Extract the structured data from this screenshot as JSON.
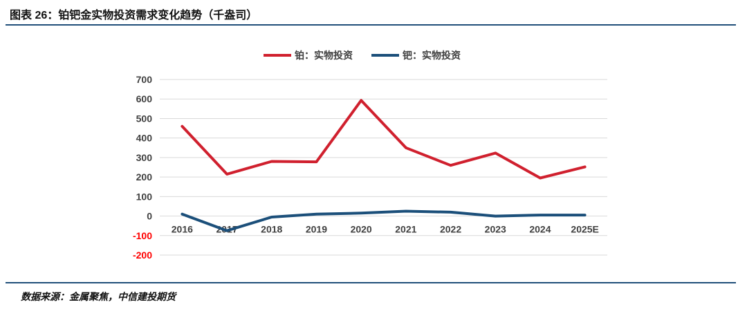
{
  "header": {
    "title": "图表 26：铂钯金实物投资需求变化趋势（千盎司）"
  },
  "footer": {
    "source": "数据来源：金属聚焦，中信建投期货"
  },
  "colors": {
    "platinum": "#d0202e",
    "palladium": "#1b4f7a",
    "axis_text": "#404040",
    "negative_text": "#ff0000",
    "grid": "#d9d9d9",
    "rule": "#1f4e79"
  },
  "chart_data": {
    "type": "line",
    "title": "铂钯金实物投资需求变化趋势（千盎司）",
    "categories": [
      "2016",
      "2017",
      "2018",
      "2019",
      "2020",
      "2021",
      "2022",
      "2023",
      "2024",
      "2025E"
    ],
    "series": [
      {
        "name": "铂：实物投资",
        "values": [
          460,
          215,
          280,
          278,
          593,
          350,
          260,
          323,
          195,
          252
        ]
      },
      {
        "name": "钯：实物投资",
        "values": [
          10,
          -75,
          -5,
          10,
          15,
          25,
          20,
          0,
          5,
          5
        ]
      }
    ],
    "yticks": [
      "700",
      "600",
      "500",
      "400",
      "300",
      "200",
      "100",
      "0",
      "-100",
      "-200"
    ],
    "ylim": [
      -200,
      700
    ],
    "xlabel": "",
    "ylabel": "",
    "legend": "top-center",
    "grid": true
  }
}
